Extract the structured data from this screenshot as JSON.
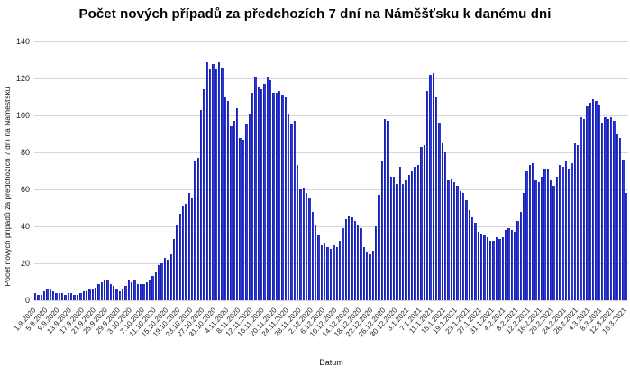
{
  "chart_data": {
    "type": "bar",
    "title": "Počet nových případů za předchozích 7 dní na Náměšťsku k danému dni",
    "xlabel": "Datum",
    "ylabel": "Počet nových případů za předchozích 7 dní na Náměšťsku",
    "ylim": [
      0,
      140
    ],
    "y_ticks": [
      0,
      20,
      40,
      60,
      80,
      100,
      120,
      140
    ],
    "x_start": "1.9.2020",
    "x_end": "16.3.2021",
    "x_tick_every": 4,
    "n_bars": 197,
    "grid": "horizontal",
    "legend": "none",
    "bar_color": "#2b37d3",
    "bar_edge_color": "#141a9c",
    "gridline_color": "#d6d6d6",
    "x_tick_labels": [
      "1.9.2020",
      "5.9.2020",
      "9.9.2020",
      "13.9.2020",
      "17.9.2020",
      "21.9.2020",
      "25.9.2020",
      "29.9.2020",
      "3.10.2020",
      "7.10.2020",
      "11.10.2020",
      "15.10.2020",
      "19.10.2020",
      "23.10.2020",
      "27.10.2020",
      "31.10.2020",
      "4.11.2020",
      "8.11.2020",
      "12.11.2020",
      "16.11.2020",
      "20.11.2020",
      "24.11.2020",
      "28.11.2020",
      "2.12.2020",
      "6.12.2020",
      "10.12.2020",
      "14.12.2020",
      "18.12.2020",
      "22.12.2020",
      "26.12.2020",
      "30.12.2020",
      "3.1.2021",
      "7.1.2021",
      "11.1.2021",
      "15.1.2021",
      "19.1.2021",
      "23.1.2021",
      "27.1.2021",
      "31.1.2021",
      "4.2.2021",
      "8.2.2021",
      "12.2.2021",
      "16.2.2021",
      "20.2.2021",
      "24.2.2021",
      "28.2.2021",
      "4.3.2021",
      "8.3.2021",
      "12.3.2021",
      "16.3.2021"
    ],
    "values": [
      4,
      3,
      3,
      5,
      6,
      6,
      5,
      4,
      4,
      4,
      3,
      4,
      4,
      3,
      3,
      4,
      5,
      5,
      6,
      6,
      7,
      9,
      10,
      11,
      11,
      9,
      8,
      6,
      5,
      6,
      8,
      11,
      10,
      11,
      9,
      9,
      9,
      10,
      11,
      13,
      15,
      19,
      20,
      23,
      22,
      25,
      33,
      41,
      47,
      51,
      52,
      58,
      55,
      75,
      77,
      103,
      114,
      129,
      125,
      128,
      125,
      129,
      126,
      110,
      108,
      94,
      97,
      104,
      88,
      87,
      95,
      101,
      112,
      121,
      115,
      114,
      117,
      121,
      119,
      112,
      112,
      113,
      111,
      110,
      101,
      95,
      97,
      73,
      60,
      61,
      58,
      55,
      48,
      41,
      35,
      30,
      31,
      29,
      28,
      30,
      29,
      32,
      39,
      44,
      46,
      45,
      43,
      41,
      39,
      29,
      26,
      25,
      27,
      40,
      57,
      75,
      98,
      97,
      67,
      67,
      63,
      72,
      63,
      65,
      68,
      70,
      72,
      73,
      83,
      84,
      113,
      122,
      123,
      110,
      96,
      85,
      80,
      65,
      66,
      64,
      62,
      59,
      58,
      54,
      49,
      45,
      42,
      37,
      36,
      35,
      34,
      32,
      32,
      34,
      33,
      34,
      38,
      39,
      38,
      37,
      43,
      48,
      58,
      70,
      73,
      74,
      65,
      64,
      67,
      71,
      71,
      65,
      62,
      67,
      73,
      72,
      75,
      71,
      74,
      85,
      84,
      99,
      98,
      105,
      107,
      109,
      108,
      106,
      96,
      99,
      98,
      99,
      97,
      90,
      88,
      76,
      58
    ]
  }
}
